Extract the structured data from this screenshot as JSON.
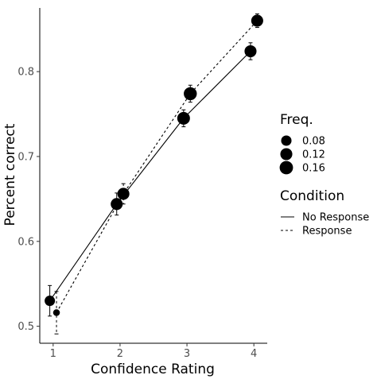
{
  "chart_data": {
    "type": "line",
    "xlabel": "Confidence Rating",
    "ylabel": "Percent correct",
    "xlim": [
      0.8,
      4.2
    ],
    "ylim": [
      0.48,
      0.875
    ],
    "x_ticks": [
      1,
      2,
      3,
      4
    ],
    "x_tick_labels": [
      "1",
      "2",
      "3",
      "4"
    ],
    "y_ticks": [
      0.5,
      0.6,
      0.7,
      0.8
    ],
    "y_tick_labels": [
      "0.5",
      "0.6",
      "0.7",
      "0.8"
    ],
    "grid": false,
    "series": [
      {
        "name": "No Response",
        "line_style": "solid",
        "points": [
          {
            "x": 1,
            "y": 0.53,
            "err": 0.018,
            "freq": 0.08
          },
          {
            "x": 2,
            "y": 0.644,
            "err": 0.013,
            "freq": 0.12
          },
          {
            "x": 3,
            "y": 0.745,
            "err": 0.01,
            "freq": 0.14
          },
          {
            "x": 4,
            "y": 0.824,
            "err": 0.01,
            "freq": 0.12
          }
        ]
      },
      {
        "name": "Response",
        "line_style": "dashed",
        "points": [
          {
            "x": 1,
            "y": 0.516,
            "err": 0.025,
            "freq": 0.02
          },
          {
            "x": 2,
            "y": 0.656,
            "err": 0.012,
            "freq": 0.12
          },
          {
            "x": 3,
            "y": 0.774,
            "err": 0.01,
            "freq": 0.15
          },
          {
            "x": 4,
            "y": 0.86,
            "err": 0.008,
            "freq": 0.12
          }
        ]
      }
    ],
    "x_dodge": 0.05,
    "point_color": "#000000",
    "legend": {
      "placement": "right",
      "size_title": "Freq.",
      "size_entries": [
        {
          "label": "0.08",
          "freq": 0.08
        },
        {
          "label": "0.12",
          "freq": 0.12
        },
        {
          "label": "0.16",
          "freq": 0.16
        }
      ],
      "line_title": "Condition",
      "line_entries": [
        {
          "label": "No Response",
          "line_style": "solid"
        },
        {
          "label": "Response",
          "line_style": "dashed"
        }
      ]
    }
  }
}
